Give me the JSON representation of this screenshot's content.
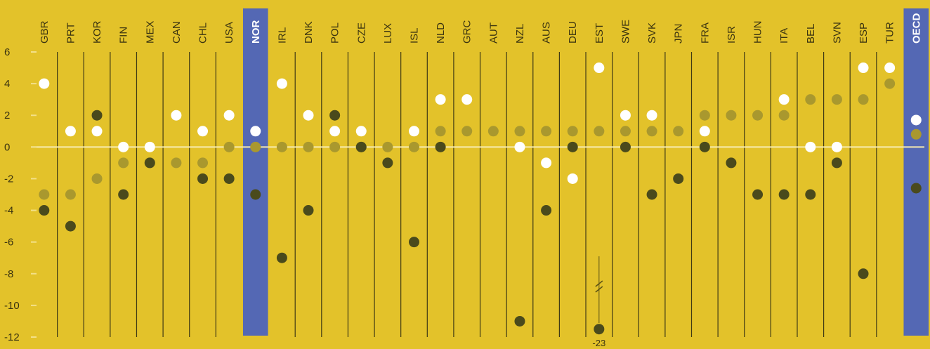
{
  "chart_data": {
    "type": "scatter",
    "categories": [
      "GBR",
      "PRT",
      "KOR",
      "FIN",
      "MEX",
      "CAN",
      "CHL",
      "USA",
      "NOR",
      "IRL",
      "DNK",
      "POL",
      "CZE",
      "LUX",
      "ISL",
      "NLD",
      "GRC",
      "AUT",
      "NZL",
      "AUS",
      "DEU",
      "EST",
      "SWE",
      "SVK",
      "JPN",
      "FRA",
      "ISR",
      "HUN",
      "ITA",
      "BEL",
      "SVN",
      "ESP",
      "TUR",
      "OECD"
    ],
    "highlight": [
      "NOR",
      "OECD"
    ],
    "ylim": [
      -12,
      6
    ],
    "yticks": [
      6,
      4,
      2,
      0,
      -2,
      -4,
      -6,
      -8,
      -10,
      -12
    ],
    "grid": false,
    "series": [
      {
        "color": "#ffffff",
        "values": [
          4,
          1,
          1,
          0,
          0,
          2,
          1,
          2,
          1,
          4,
          2,
          1,
          1,
          null,
          1,
          3,
          3,
          null,
          0,
          -1,
          -2,
          5,
          2,
          2,
          null,
          1,
          null,
          null,
          3,
          0,
          0,
          5,
          5,
          1.7
        ]
      },
      {
        "color": "#a9982e",
        "values": [
          -3,
          -3,
          -2,
          -1,
          -1,
          -1,
          -1,
          0,
          0,
          0,
          0,
          0,
          0,
          0,
          0,
          1,
          1,
          1,
          1,
          1,
          1,
          1,
          1,
          1,
          1,
          2,
          2,
          2,
          2,
          3,
          3,
          3,
          4,
          0.8
        ]
      },
      {
        "color": "#4a4a1c",
        "values": [
          -4,
          -5,
          2,
          -3,
          -1,
          null,
          -2,
          -2,
          -3,
          -7,
          -4,
          2,
          0,
          -1,
          -6,
          0,
          null,
          null,
          -11,
          -4,
          0,
          -11.5,
          0,
          -3,
          -2,
          0,
          -1,
          -3,
          -3,
          -3,
          -1,
          -8,
          null,
          -2.6
        ]
      }
    ],
    "annotations": [
      {
        "category": "EST",
        "label": "-23"
      }
    ],
    "colors": {
      "background": "#e3c22a",
      "highlight_band": "#5468b4",
      "separator": "#3f3a14",
      "zero_line": "#f7ebb0"
    }
  }
}
